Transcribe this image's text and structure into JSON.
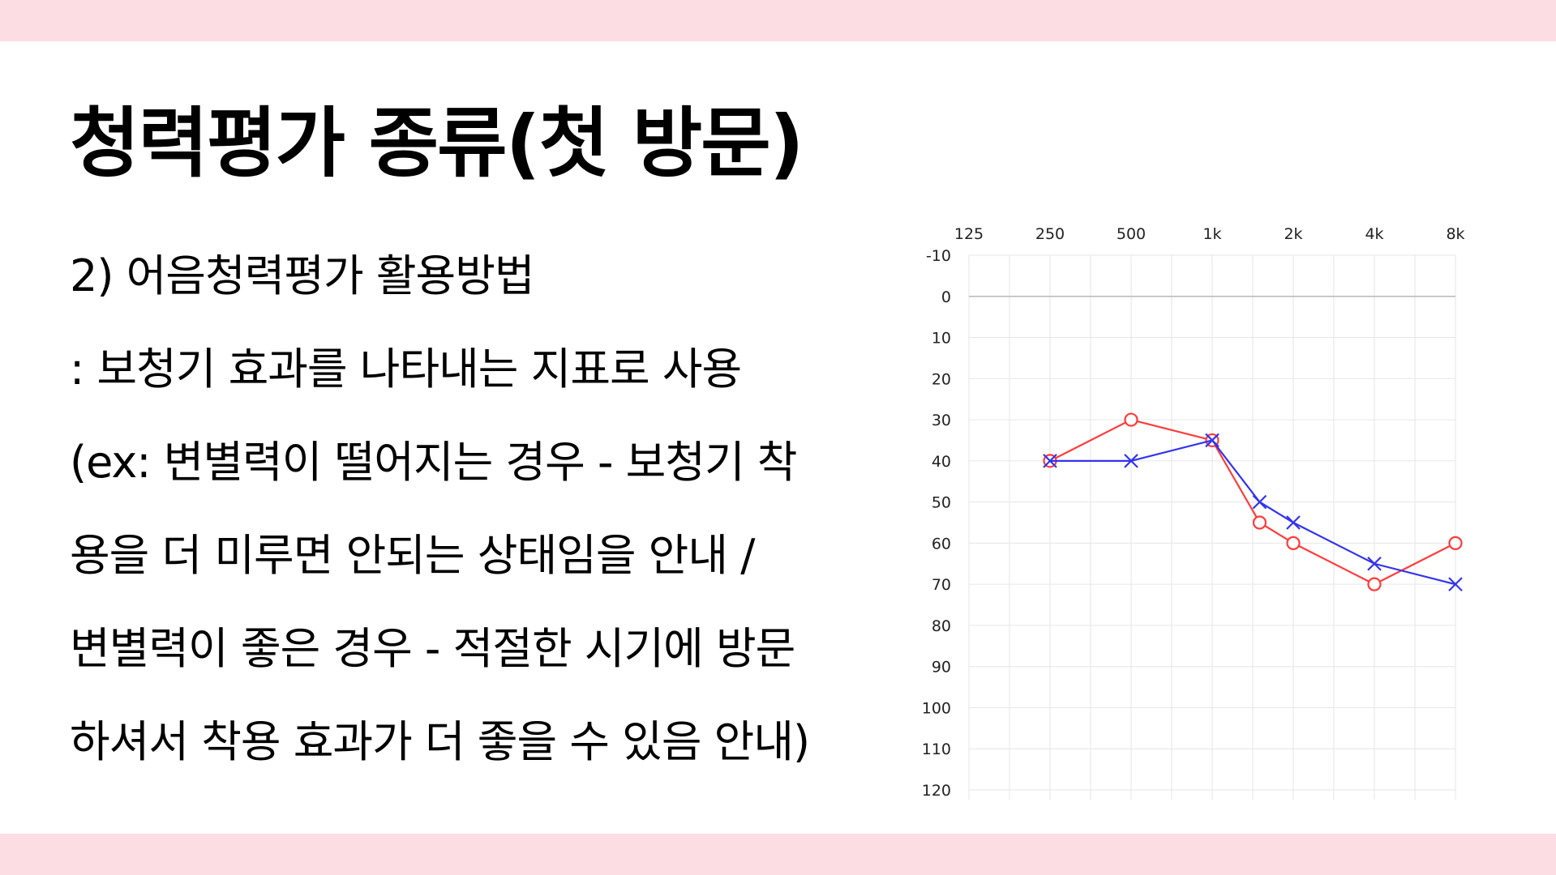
{
  "slide": {
    "title": "청력평가 종류(첫 방문)",
    "lines": [
      "2) 어음청력평가 활용방법",
      ": 보청기 효과를 나타내는 지표로 사용",
      "(ex: 변별력이 떨어지는 경우 - 보청기 착",
      "용을 더 미루면 안되는 상태임을 안내 /",
      "변별력이 좋은 경우 - 적절한 시기에 방문",
      "하셔서 착용 효과가 더 좋을 수 있음 안내)"
    ],
    "colors": {
      "band": "#fddde4",
      "text": "#000000"
    }
  },
  "chart_data": {
    "type": "line",
    "x_categories": [
      "125",
      "250",
      "500",
      "1k",
      "2k",
      "4k",
      "8k"
    ],
    "x_values_hz": [
      125,
      250,
      500,
      1000,
      2000,
      4000,
      8000
    ],
    "x_scale": "log",
    "x_tick_position": "top",
    "y_ticks": [
      -10,
      0,
      10,
      20,
      30,
      40,
      50,
      60,
      70,
      80,
      90,
      100,
      110,
      120
    ],
    "ylim": [
      -10,
      120
    ],
    "y_inverted": true,
    "grid": true,
    "series": [
      {
        "marker": "circle",
        "color": "#ff3b3b",
        "points": [
          {
            "x": 250,
            "y": 40
          },
          {
            "x": 500,
            "y": 30
          },
          {
            "x": 1000,
            "y": 35
          },
          {
            "x": 1500,
            "y": 55
          },
          {
            "x": 2000,
            "y": 60
          },
          {
            "x": 4000,
            "y": 70
          },
          {
            "x": 8000,
            "y": 60
          }
        ]
      },
      {
        "marker": "cross",
        "color": "#3333ee",
        "points": [
          {
            "x": 250,
            "y": 40
          },
          {
            "x": 500,
            "y": 40
          },
          {
            "x": 1000,
            "y": 35
          },
          {
            "x": 1500,
            "y": 50
          },
          {
            "x": 2000,
            "y": 55
          },
          {
            "x": 4000,
            "y": 65
          },
          {
            "x": 8000,
            "y": 70
          }
        ]
      }
    ]
  }
}
